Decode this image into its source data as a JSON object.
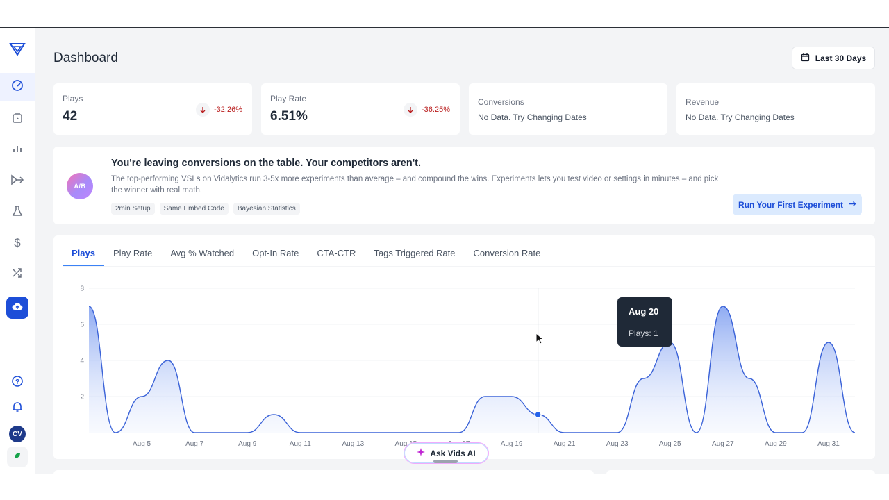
{
  "page": {
    "title": "Dashboard"
  },
  "date_range": {
    "label": "Last 30 Days"
  },
  "sidebar": {
    "items": [
      {
        "name": "gauge-icon"
      },
      {
        "name": "video-library-icon"
      },
      {
        "name": "bar-chart-icon"
      },
      {
        "name": "split-test-icon"
      },
      {
        "name": "flask-icon"
      },
      {
        "name": "dollar-icon"
      },
      {
        "name": "shuffle-icon"
      },
      {
        "name": "cloud-upload-icon"
      },
      {
        "name": "help-icon"
      },
      {
        "name": "bell-icon"
      }
    ],
    "avatar_initials": "CV"
  },
  "metrics": [
    {
      "label": "Plays",
      "value": "42",
      "delta": "-32.26%"
    },
    {
      "label": "Play Rate",
      "value": "6.51%",
      "delta": "-36.25%"
    },
    {
      "label": "Conversions",
      "nodata": "No Data. Try Changing Dates"
    },
    {
      "label": "Revenue",
      "nodata": "No Data. Try Changing Dates"
    }
  ],
  "promo": {
    "badge": "A/B",
    "title": "You're leaving conversions on the table. Your competitors aren't.",
    "description": "The top-performing VSLs on Vidalytics run 3-5x more experiments than average – and compound the wins. Experiments lets you test video or settings in minutes – and pick the winner with real math.",
    "tags": [
      "2min Setup",
      "Same Embed Code",
      "Bayesian Statistics"
    ],
    "cta": "Run Your First Experiment"
  },
  "tabs": [
    "Plays",
    "Play Rate",
    "Avg % Watched",
    "Opt-In Rate",
    "CTA-CTR",
    "Tags Triggered Rate",
    "Conversion Rate"
  ],
  "active_tab": "Plays",
  "tooltip": {
    "date": "Aug 20",
    "text": "Plays: 1"
  },
  "ask_ai": {
    "label": "Ask Vids AI"
  },
  "colors": {
    "accent": "#1d4ed8",
    "negative": "#b91c1c",
    "line": "#3b63d8"
  },
  "chart_data": {
    "type": "area",
    "x": [
      "Aug 3",
      "Aug 4",
      "Aug 5",
      "Aug 6",
      "Aug 7",
      "Aug 8",
      "Aug 9",
      "Aug 10",
      "Aug 11",
      "Aug 12",
      "Aug 13",
      "Aug 14",
      "Aug 15",
      "Aug 16",
      "Aug 17",
      "Aug 18",
      "Aug 19",
      "Aug 20",
      "Aug 21",
      "Aug 22",
      "Aug 23",
      "Aug 24",
      "Aug 25",
      "Aug 26",
      "Aug 27",
      "Aug 28",
      "Aug 29",
      "Aug 30",
      "Aug 31",
      "Sep 1"
    ],
    "tick_labels": [
      "Aug 5",
      "Aug 7",
      "Aug 9",
      "Aug 11",
      "Aug 13",
      "Aug 15",
      "Aug 17",
      "Aug 19",
      "Aug 21",
      "Aug 23",
      "Aug 25",
      "Aug 27",
      "Aug 29",
      "Aug 31"
    ],
    "series": [
      {
        "values": [
          7,
          0,
          2,
          4,
          0,
          0,
          0,
          1,
          0,
          0,
          0,
          0,
          0,
          0,
          0,
          2,
          2,
          1,
          0,
          0,
          0,
          3,
          5,
          0,
          7,
          3,
          0,
          0,
          5,
          0
        ]
      }
    ],
    "yticks": [
      2,
      4,
      6,
      8
    ],
    "ylim": [
      0,
      8
    ],
    "grid": true
  }
}
